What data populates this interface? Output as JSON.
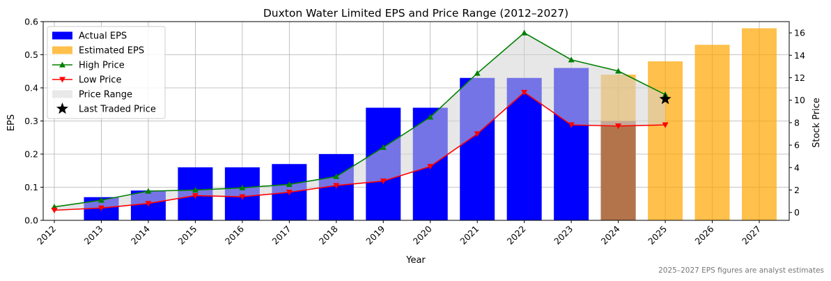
{
  "chart_data": {
    "type": "bar",
    "title": "Duxton Water Limited EPS and Price Range (2012–2027)",
    "xlabel": "Year",
    "ylabel": "EPS",
    "y2label": "Stock Price",
    "categories": [
      "2012",
      "2013",
      "2014",
      "2015",
      "2016",
      "2017",
      "2018",
      "2019",
      "2020",
      "2021",
      "2022",
      "2023",
      "2024",
      "2025",
      "2026",
      "2027"
    ],
    "ylim": [
      0,
      0.6
    ],
    "yticks": [
      0.0,
      0.1,
      0.2,
      0.3,
      0.4,
      0.5,
      0.6
    ],
    "ytick_labels": [
      "0.0",
      "0.1",
      "0.2",
      "0.3",
      "0.4",
      "0.5",
      "0.6"
    ],
    "y2lim": [
      -0.7,
      17.0
    ],
    "y2ticks": [
      0,
      2,
      4,
      6,
      8,
      10,
      12,
      14,
      16
    ],
    "y2tick_labels": [
      "0",
      "2",
      "4",
      "6",
      "8",
      "10",
      "12",
      "14",
      "16"
    ],
    "grid": true,
    "legend_position": "top-left",
    "series": [
      {
        "name": "Actual EPS",
        "kind": "bar",
        "color": "#0000ff",
        "values": [
          null,
          0.07,
          0.09,
          0.16,
          0.16,
          0.17,
          0.2,
          0.34,
          0.34,
          0.43,
          0.43,
          0.46,
          0.3,
          null,
          null,
          null
        ]
      },
      {
        "name": "Estimated EPS",
        "kind": "bar",
        "color": "#ffa500",
        "values": [
          null,
          null,
          null,
          null,
          null,
          null,
          null,
          null,
          null,
          null,
          null,
          null,
          0.44,
          0.48,
          0.53,
          0.58
        ]
      },
      {
        "name": "High Price",
        "kind": "line",
        "marker": "triangle-up",
        "color": "#008000",
        "axis": "right",
        "values": [
          0.5,
          1.1,
          1.9,
          2.0,
          2.2,
          2.5,
          3.2,
          5.8,
          8.5,
          12.4,
          16.0,
          13.6,
          12.6,
          10.5,
          null,
          null
        ]
      },
      {
        "name": "Low Price",
        "kind": "line",
        "marker": "triangle-down",
        "color": "#ff0000",
        "axis": "right",
        "values": [
          0.2,
          0.4,
          0.8,
          1.5,
          1.4,
          1.8,
          2.4,
          2.8,
          4.1,
          7.0,
          10.7,
          7.8,
          7.7,
          7.8,
          null,
          null
        ]
      },
      {
        "name": "Price Range",
        "kind": "fill",
        "color": "#d3d3d3"
      },
      {
        "name": "Last Traded Price",
        "kind": "point",
        "marker": "star",
        "color": "#000000",
        "axis": "right",
        "x": "2025",
        "value": 10.1
      }
    ],
    "footnote": "2025–2027 EPS figures are analyst estimates"
  }
}
